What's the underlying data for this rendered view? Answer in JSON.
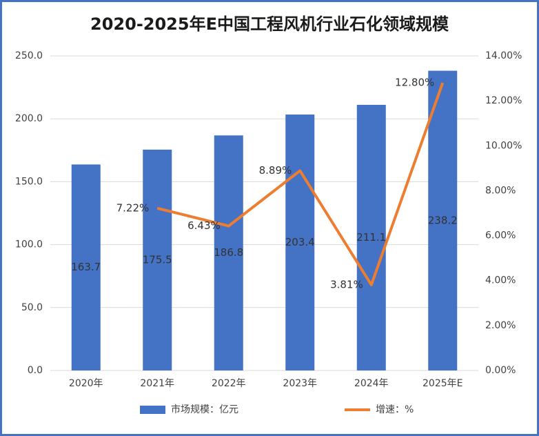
{
  "chart_data": {
    "type": "bar-line",
    "title": "2020-2025年E中国工程风机行业石化领域规模",
    "categories": [
      "2020年",
      "2021年",
      "2022年",
      "2023年",
      "2024年",
      "2025年E"
    ],
    "series": [
      {
        "name": "市场规模：亿元",
        "type": "bar",
        "color": "#4472c4",
        "values": [
          163.7,
          175.5,
          186.8,
          203.4,
          211.1,
          238.2
        ]
      },
      {
        "name": "增速：%",
        "type": "line",
        "axis": "y2",
        "color": "#ed7d31",
        "values": [
          null,
          7.22,
          6.43,
          8.89,
          3.81,
          12.8
        ],
        "value_labels": [
          null,
          "7.22%",
          "6.43%",
          "8.89%",
          "3.81%",
          "12.80%"
        ]
      }
    ],
    "ylim": [
      0,
      250
    ],
    "yticks": [
      {
        "value": 0,
        "label": "0.0"
      },
      {
        "value": 50,
        "label": "50.0"
      },
      {
        "value": 100,
        "label": "100.0"
      },
      {
        "value": 150,
        "label": "150.0"
      },
      {
        "value": 200,
        "label": "200.0"
      },
      {
        "value": 250,
        "label": "250.0"
      }
    ],
    "y2lim": [
      0,
      14
    ],
    "y2ticks": [
      {
        "value": 0,
        "label": "0.00%"
      },
      {
        "value": 2,
        "label": "2.00%"
      },
      {
        "value": 4,
        "label": "4.00%"
      },
      {
        "value": 6,
        "label": "6.00%"
      },
      {
        "value": 8,
        "label": "8.00%"
      },
      {
        "value": 10,
        "label": "10.00%"
      },
      {
        "value": 12,
        "label": "12.00%"
      },
      {
        "value": 14,
        "label": "14.00%"
      }
    ],
    "grid": true
  }
}
